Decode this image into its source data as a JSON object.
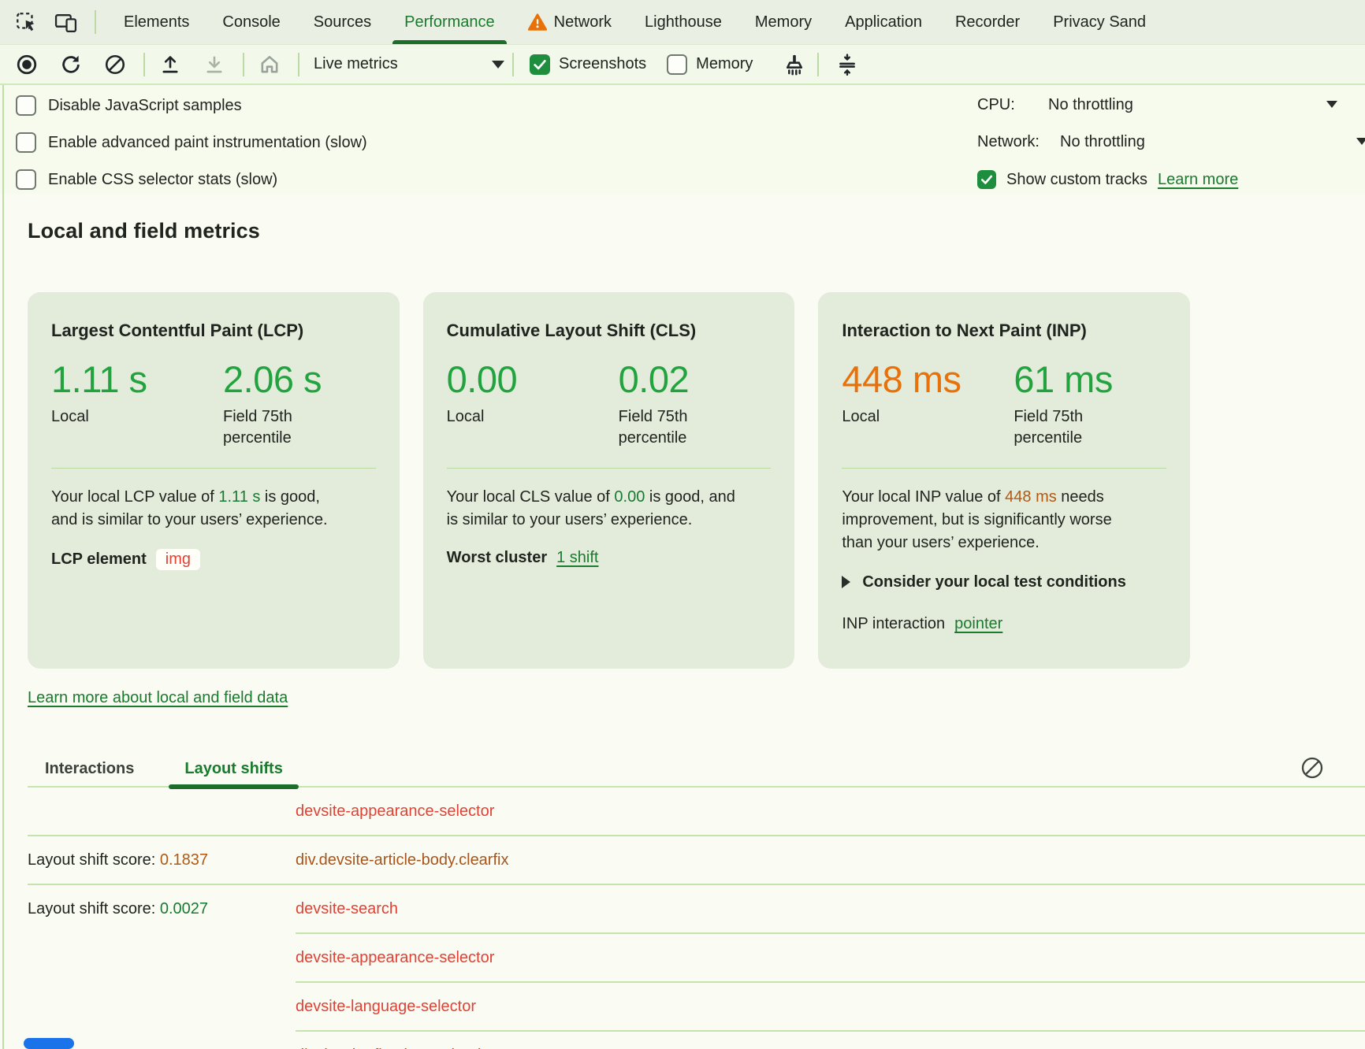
{
  "colors": {
    "accent_green": "#197b2d",
    "good_green": "#23a33f",
    "needs_improvement_orange": "#e8710a",
    "node_red": "#e04236",
    "node_brown": "#a8551c",
    "checkbox_green": "#1e8e3e",
    "link_green": "#1a7b2e",
    "indicator_blue": "#1a73e8"
  },
  "tabs": {
    "items": [
      {
        "label": "Elements",
        "active": false,
        "warning": false
      },
      {
        "label": "Console",
        "active": false,
        "warning": false
      },
      {
        "label": "Sources",
        "active": false,
        "warning": false
      },
      {
        "label": "Performance",
        "active": true,
        "warning": false
      },
      {
        "label": "Network",
        "active": false,
        "warning": true
      },
      {
        "label": "Lighthouse",
        "active": false,
        "warning": false
      },
      {
        "label": "Memory",
        "active": false,
        "warning": false
      },
      {
        "label": "Application",
        "active": false,
        "warning": false
      },
      {
        "label": "Recorder",
        "active": false,
        "warning": false
      },
      {
        "label": "Privacy Sand",
        "active": false,
        "warning": false
      }
    ]
  },
  "toolbar": {
    "mode_label": "Live metrics",
    "screenshots_label": "Screenshots",
    "screenshots_checked": true,
    "memory_label": "Memory",
    "memory_checked": false
  },
  "options": {
    "checkboxes": [
      "Disable JavaScript samples",
      "Enable advanced paint instrumentation (slow)",
      "Enable CSS selector stats (slow)"
    ],
    "cpu_label": "CPU:",
    "cpu_value": "No throttling",
    "network_label": "Network:",
    "network_value": "No throttling",
    "custom_tracks_label": "Show custom tracks",
    "custom_tracks_checked": true,
    "learn_more_label": "Learn more"
  },
  "metrics": {
    "heading": "Local and field metrics",
    "learn_more": "Learn more about local and field data",
    "cards": [
      {
        "title": "Largest Contentful Paint (LCP)",
        "local_value": "1.11 s",
        "local_label": "Local",
        "field_value": "2.06 s",
        "field_label": "Field 75th\npercentile",
        "desc_before": "Your local LCP value of ",
        "desc_value": "1.11 s",
        "desc_after": " is good,\nand is similar to your users’ experience.",
        "footer_label": "LCP element",
        "footer_value": "img"
      },
      {
        "title": "Cumulative Layout Shift (CLS)",
        "local_value": "0.00",
        "local_label": "Local",
        "field_value": "0.02",
        "field_label": "Field 75th\npercentile",
        "desc_before": "Your local CLS value of ",
        "desc_value": "0.00",
        "desc_after": " is good, and\nis similar to your users’ experience.",
        "footer_label": "Worst cluster",
        "footer_link": "1 shift"
      },
      {
        "title": "Interaction to Next Paint (INP)",
        "local_value": "448 ms",
        "local_label": "Local",
        "field_value": "61 ms",
        "field_label": "Field 75th\npercentile",
        "desc_before": "Your local INP value of ",
        "desc_value": "448 ms",
        "desc_after": " needs\nimprovement, but is significantly worse\nthan your users’ experience.",
        "expander_label": "Consider your local test conditions",
        "footer_label": "INP interaction",
        "footer_link": "pointer"
      }
    ]
  },
  "log": {
    "tabs": [
      "Interactions",
      "Layout shifts"
    ],
    "active_tab": "Layout shifts",
    "rows": [
      {
        "score_prefix": "",
        "score": "",
        "score_color": "",
        "node": "devsite-appearance-selector",
        "node_color": "red",
        "divider": "full"
      },
      {
        "score_prefix": "Layout shift score: ",
        "score": "0.1837",
        "score_color": "orange",
        "node": "div.devsite-article-body.clearfix",
        "node_color": "brown",
        "divider": "full"
      },
      {
        "score_prefix": "Layout shift score: ",
        "score": "0.0027",
        "score_color": "green",
        "node": "devsite-search",
        "node_color": "red",
        "divider": "partial"
      },
      {
        "score_prefix": "",
        "score": "",
        "score_color": "",
        "node": "devsite-appearance-selector",
        "node_color": "red",
        "divider": "partial"
      },
      {
        "score_prefix": "",
        "score": "",
        "score_color": "",
        "node": "devsite-language-selector",
        "node_color": "red",
        "divider": "partial"
      },
      {
        "score_prefix": "",
        "score": "",
        "score_color": "",
        "node": "div.devsite-floating-action-buttons",
        "node_color": "brown",
        "divider": "none"
      }
    ]
  }
}
